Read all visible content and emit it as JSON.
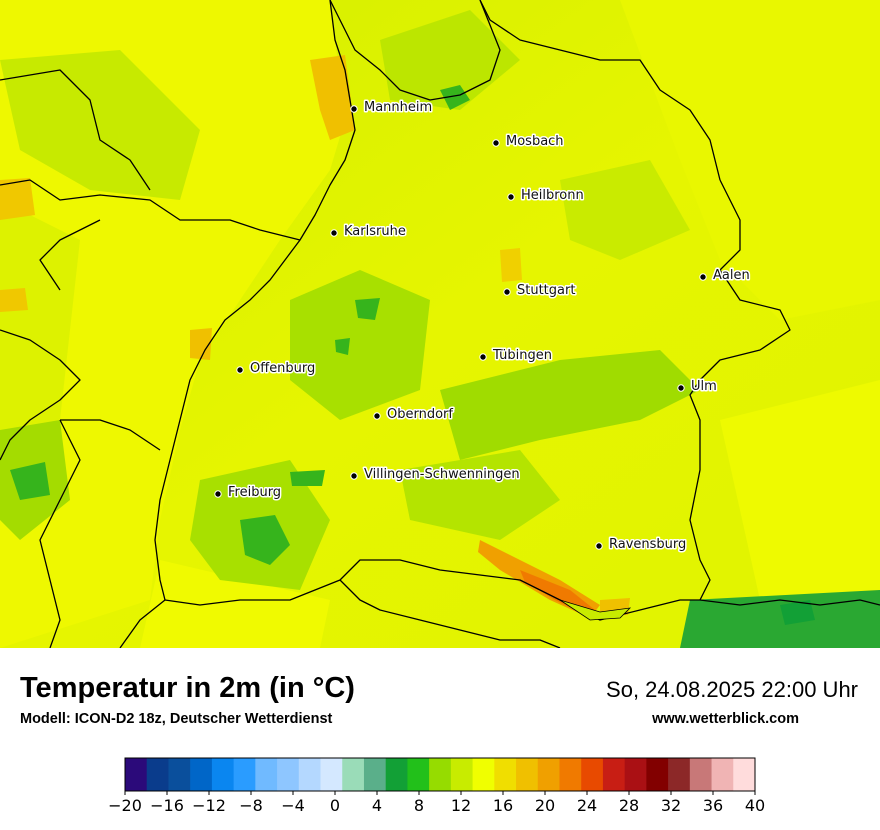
{
  "map": {
    "cities": [
      {
        "name": "Mannheim"
      },
      {
        "name": "Mosbach"
      },
      {
        "name": "Heilbronn"
      },
      {
        "name": "Karlsruhe"
      },
      {
        "name": "Aalen"
      },
      {
        "name": "Stuttgart"
      },
      {
        "name": "Tübingen"
      },
      {
        "name": "Offenburg"
      },
      {
        "name": "Ulm"
      },
      {
        "name": "Oberndorf"
      },
      {
        "name": "Villingen-Schwenningen"
      },
      {
        "name": "Freiburg"
      },
      {
        "name": "Ravensburg"
      }
    ]
  },
  "header": {
    "title": "Temperatur in 2m (in °C)",
    "model": "Modell: ICON-D2 18z, Deutscher Wetterdienst",
    "datetime": "So, 24.08.2025 22:00 Uhr",
    "website": "www.wetterblick.com"
  },
  "legend": {
    "min": -20,
    "max": 40,
    "ticks": [
      "−20",
      "−16",
      "−12",
      "−8",
      "−4",
      "0",
      "4",
      "8",
      "12",
      "16",
      "20",
      "24",
      "28",
      "32",
      "36",
      "40"
    ],
    "colors": [
      "#2b0a7a",
      "#0a3c8c",
      "#0a4f9c",
      "#0066c8",
      "#0a86f0",
      "#2a9cff",
      "#70baff",
      "#8ec6ff",
      "#b4d8ff",
      "#d4e8ff",
      "#9adcb8",
      "#5aaf8a",
      "#12a036",
      "#22c01a",
      "#96dc00",
      "#c8ec00",
      "#f0ff00",
      "#f0de00",
      "#f0c000",
      "#f0a000",
      "#f07a00",
      "#e84a00",
      "#c81e14",
      "#aa1014",
      "#820000",
      "#8c2828",
      "#c87878",
      "#f0b4b4",
      "#ffdcdc"
    ]
  }
}
